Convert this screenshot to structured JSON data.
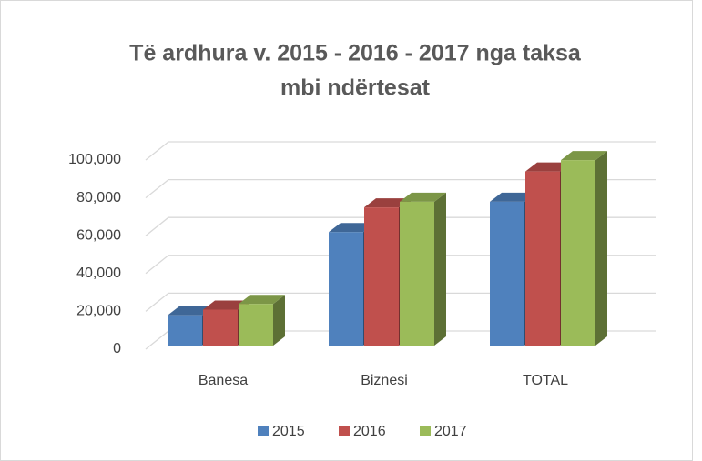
{
  "chart_data": {
    "type": "bar3d",
    "title": "Të ardhura v. 2015 - 2016 - 2017 nga taksa",
    "subtitle": "mbi ndërtesat",
    "categories": [
      "Banesa",
      "Biznesi",
      "TOTAL"
    ],
    "series": [
      {
        "name": "2015",
        "color": "#4f81bd",
        "values": [
          16000,
          60000,
          76000
        ]
      },
      {
        "name": "2016",
        "color": "#c0504d",
        "values": [
          19000,
          73000,
          92000
        ]
      },
      {
        "name": "2017",
        "color": "#9bbb59",
        "values": [
          22000,
          76000,
          98000
        ]
      }
    ],
    "ylim": [
      0,
      100000
    ],
    "yticks": [
      0,
      {
        "value": 20000,
        "label": "20,000"
      },
      {
        "value": 40000,
        "label": "40,000"
      },
      {
        "value": 60000,
        "label": "60,000"
      },
      {
        "value": 80000,
        "label": "80,000"
      },
      {
        "value": 100000,
        "label": "100,000"
      }
    ],
    "grid": true,
    "legend": "bottom"
  }
}
